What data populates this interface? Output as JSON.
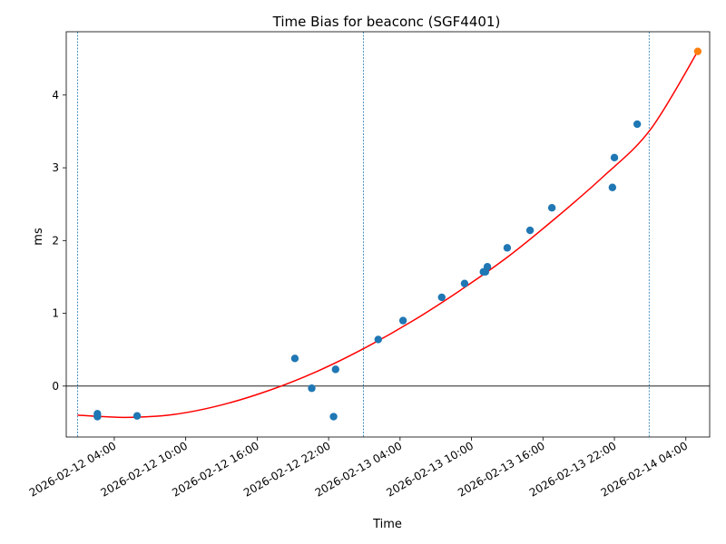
{
  "chart_data": {
    "type": "scatter",
    "title": "Time Bias for beaconc (SGF4401)",
    "xlabel": "Time",
    "ylabel": "ms",
    "x_tick_labels": [
      "2026-02-12 04:00",
      "2026-02-12 10:00",
      "2026-02-12 16:00",
      "2026-02-12 22:00",
      "2026-02-13 04:00",
      "2026-02-13 10:00",
      "2026-02-13 16:00",
      "2026-02-13 22:00",
      "2026-02-14 04:00"
    ],
    "y_tick_labels": [
      "0",
      "1",
      "2",
      "3",
      "4"
    ],
    "xlim": [
      "2026-02-11 23:58",
      "2026-02-14 06:00"
    ],
    "ylim": [
      -0.7,
      4.87
    ],
    "grid": false,
    "zero_line": 0,
    "vertical_markers": [
      "2026-02-12 00:55",
      "2026-02-13 00:55",
      "2026-02-14 00:55"
    ],
    "series": [
      {
        "kind": "scatter",
        "color": "#1f77b4",
        "points": [
          {
            "x": "2026-02-12 02:35",
            "y": -0.38
          },
          {
            "x": "2026-02-12 02:35",
            "y": -0.42
          },
          {
            "x": "2026-02-12 05:55",
            "y": -0.41
          },
          {
            "x": "2026-02-12 19:10",
            "y": 0.38
          },
          {
            "x": "2026-02-12 20:35",
            "y": -0.03
          },
          {
            "x": "2026-02-12 22:25",
            "y": -0.42
          },
          {
            "x": "2026-02-12 22:35",
            "y": 0.23
          },
          {
            "x": "2026-02-13 02:10",
            "y": 0.64
          },
          {
            "x": "2026-02-13 04:15",
            "y": 0.9
          },
          {
            "x": "2026-02-13 07:30",
            "y": 1.22
          },
          {
            "x": "2026-02-13 09:25",
            "y": 1.41
          },
          {
            "x": "2026-02-13 11:00",
            "y": 1.57
          },
          {
            "x": "2026-02-13 11:10",
            "y": 1.57
          },
          {
            "x": "2026-02-13 11:20",
            "y": 1.64
          },
          {
            "x": "2026-02-13 13:00",
            "y": 1.9
          },
          {
            "x": "2026-02-13 14:55",
            "y": 2.14
          },
          {
            "x": "2026-02-13 16:45",
            "y": 2.45
          },
          {
            "x": "2026-02-13 21:50",
            "y": 2.73
          },
          {
            "x": "2026-02-13 22:00",
            "y": 3.14
          },
          {
            "x": "2026-02-13 23:55",
            "y": 3.6
          }
        ]
      },
      {
        "kind": "scatter",
        "color": "#ff7f0e",
        "points": [
          {
            "x": "2026-02-14 05:00",
            "y": 4.6
          }
        ]
      },
      {
        "kind": "fit-line",
        "color": "#ff0000",
        "points": [
          {
            "x": "2026-02-12 00:55",
            "y": -0.4
          },
          {
            "x": "2026-02-12 05:00",
            "y": -0.43
          },
          {
            "x": "2026-02-12 09:00",
            "y": -0.39
          },
          {
            "x": "2026-02-12 13:00",
            "y": -0.26
          },
          {
            "x": "2026-02-12 17:00",
            "y": -0.06
          },
          {
            "x": "2026-02-12 21:00",
            "y": 0.2
          },
          {
            "x": "2026-02-13 01:00",
            "y": 0.52
          },
          {
            "x": "2026-02-13 05:00",
            "y": 0.89
          },
          {
            "x": "2026-02-13 09:00",
            "y": 1.31
          },
          {
            "x": "2026-02-13 13:00",
            "y": 1.77
          },
          {
            "x": "2026-02-13 17:00",
            "y": 2.3
          },
          {
            "x": "2026-02-13 21:00",
            "y": 2.87
          },
          {
            "x": "2026-02-14 01:00",
            "y": 3.52
          },
          {
            "x": "2026-02-14 05:00",
            "y": 4.6
          }
        ]
      }
    ]
  }
}
